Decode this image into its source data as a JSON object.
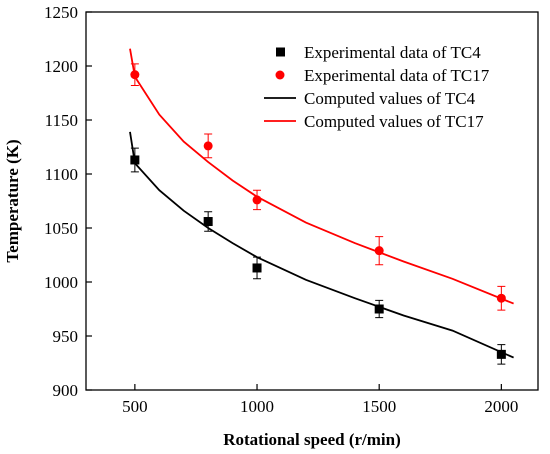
{
  "chart_data": {
    "type": "scatter",
    "xlabel": "Rotational speed (r/min)",
    "ylabel": "Temperature (K)",
    "xlim": [
      300,
      2150
    ],
    "ylim": [
      900,
      1250
    ],
    "xticks": [
      500,
      1000,
      1500,
      2000
    ],
    "yticks": [
      900,
      950,
      1000,
      1050,
      1100,
      1150,
      1200,
      1250
    ],
    "grid": false,
    "legend_position": "top-right",
    "series": [
      {
        "name": "Experimental data of TC4",
        "kind": "scatter",
        "marker": "square",
        "color": "#000000",
        "x": [
          500,
          800,
          1000,
          1500,
          2000
        ],
        "y": [
          1113,
          1056,
          1013,
          975,
          933
        ],
        "err": [
          11,
          9,
          10,
          8,
          9
        ]
      },
      {
        "name": "Experimental data of TC17",
        "kind": "scatter",
        "marker": "circle",
        "color": "#ff0000",
        "x": [
          500,
          800,
          1000,
          1500,
          2000
        ],
        "y": [
          1192,
          1126,
          1076,
          1029,
          985
        ],
        "err": [
          10,
          11,
          9,
          13,
          11
        ]
      },
      {
        "name": "Computed values of TC4",
        "kind": "line",
        "color": "#000000",
        "x": [
          480,
          500,
          600,
          700,
          800,
          900,
          1000,
          1200,
          1400,
          1600,
          1800,
          2050
        ],
        "y": [
          1139,
          1110,
          1085,
          1066,
          1050,
          1036,
          1023,
          1002,
          985,
          969,
          955,
          930
        ]
      },
      {
        "name": "Computed values of TC17",
        "kind": "line",
        "color": "#ff0000",
        "x": [
          480,
          500,
          600,
          700,
          800,
          900,
          1000,
          1200,
          1400,
          1600,
          1800,
          2050
        ],
        "y": [
          1216,
          1190,
          1155,
          1130,
          1111,
          1094,
          1079,
          1055,
          1036,
          1019,
          1003,
          980
        ]
      }
    ]
  }
}
